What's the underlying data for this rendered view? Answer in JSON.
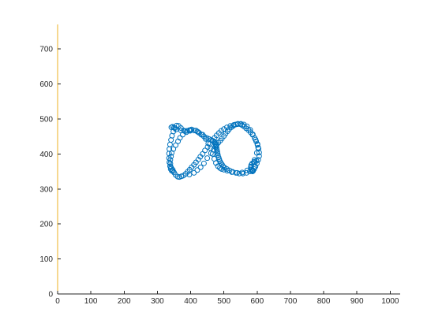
{
  "chart_data": {
    "type": "scatter",
    "title": "",
    "xlabel": "",
    "ylabel": "",
    "xlim": [
      0,
      1030
    ],
    "ylim": [
      0,
      770
    ],
    "x_ticks": [
      0,
      100,
      200,
      300,
      400,
      500,
      600,
      700,
      800,
      900,
      1000
    ],
    "y_ticks": [
      0,
      100,
      200,
      300,
      400,
      500,
      600,
      700
    ],
    "grid": false,
    "legend": "none",
    "colors": {
      "marker": "#0072BD",
      "x_axis": "#262626",
      "y_axis": "#EDB120"
    },
    "marker": "open-circle",
    "series": [
      {
        "x": [
          346,
          341,
          339,
          339,
          341,
          343,
          348,
          355,
          362,
          368,
          376,
          387,
          398,
          410,
          423,
          436,
          445,
          453,
          460,
          466,
          471,
          476,
          482,
          488,
          493,
          500,
          510,
          524,
          540,
          555,
          570,
          582,
          592,
          599,
          603,
          601,
          595,
          587,
          579,
          569,
          560,
          551,
          541,
          530,
          519,
          509,
          500,
          492,
          485,
          478,
          472,
          465,
          458,
          451,
          443,
          436,
          429,
          423,
          416,
          410,
          403,
          397,
          391,
          385,
          378,
          372,
          366,
          361,
          355,
          350,
          347,
          343,
          340,
          338,
          336,
          335,
          335,
          336,
          338,
          341,
          344,
          348,
          353,
          358,
          364,
          371,
          379,
          389,
          400,
          403,
          396,
          383,
          371,
          356,
          350,
          346,
          342,
          396,
          410,
          420,
          430,
          440,
          450,
          461,
          469,
          474,
          478,
          483,
          489,
          494,
          500,
          505,
          511,
          516,
          522,
          528,
          535,
          542,
          549,
          555,
          561,
          567,
          574,
          580,
          586,
          592,
          597,
          601,
          604,
          606,
          606,
          603,
          599,
          595,
          591,
          588,
          586,
          584,
          582,
          581,
          582,
          585,
          590,
          592,
          598,
          592,
          586,
          578,
          568,
          557,
          546,
          536,
          526,
          517,
          509,
          502,
          497,
          494,
          491,
          488,
          486,
          484,
          482,
          481,
          480,
          479,
          478,
          477,
          476,
          474,
          472,
          468,
          462,
          455,
          448,
          440,
          432,
          426,
          420,
          416
        ],
        "y": [
          355,
          362,
          372,
          383,
          393,
          403,
          414,
          425,
          436,
          446,
          455,
          462,
          466,
          467,
          462,
          455,
          443,
          430,
          416,
          400,
          386,
          374,
          365,
          360,
          357,
          355,
          352,
          348,
          346,
          347,
          353,
          364,
          383,
          403,
          418,
          428,
          441,
          456,
          469,
          479,
          484,
          486,
          485,
          483,
          480,
          476,
          471,
          466,
          460,
          453,
          446,
          438,
          429,
          420,
          410,
          400,
          392,
          384,
          376,
          369,
          362,
          355,
          349,
          343,
          338,
          336,
          334,
          335,
          340,
          347,
          351,
          352,
          357,
          365,
          376,
          388,
          401,
          414,
          427,
          440,
          452,
          464,
          474,
          481,
          480,
          474,
          467,
          466,
          468,
          470,
          468,
          465,
          467,
          470,
          475,
          478,
          476,
          341,
          346,
          354,
          362,
          373,
          388,
          402,
          412,
          420,
          426,
          432,
          438,
          444,
          451,
          458,
          465,
          471,
          476,
          480,
          484,
          486,
          485,
          482,
          478,
          473,
          468,
          462,
          455,
          446,
          436,
          426,
          415,
          404,
          394,
          383,
          373,
          364,
          357,
          352,
          350,
          352,
          356,
          362,
          368,
          373,
          376,
          378,
          380,
          363,
          354,
          350,
          346,
          344,
          344,
          346,
          349,
          353,
          357,
          361,
          365,
          370,
          374,
          379,
          385,
          390,
          396,
          401,
          406,
          411,
          416,
          421,
          425,
          430,
          434,
          437,
          440,
          443,
          446,
          450,
          455,
          460,
          464,
          467
        ]
      }
    ]
  }
}
